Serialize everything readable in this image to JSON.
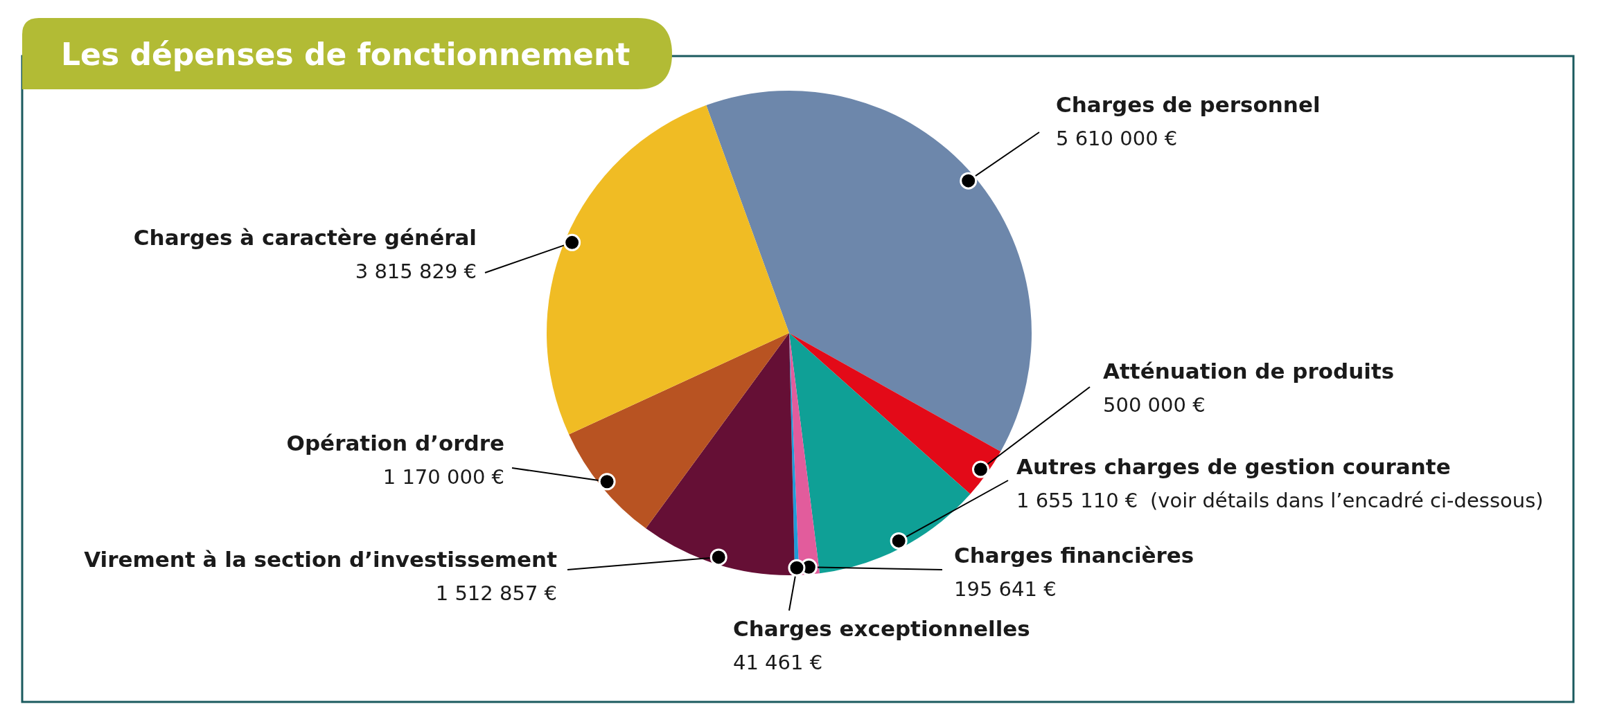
{
  "chart_data": {
    "type": "pie",
    "title": "Les dépenses de fonctionnement",
    "categories": [
      "Charges de personnel",
      "Atténuation de produits",
      "Autres charges de gestion courante",
      "Charges financières",
      "Charges exceptionnelles",
      "Virement à la section d’investissement",
      "Opération d’ordre",
      "Charges à caractère général"
    ],
    "values": [
      5610000,
      500000,
      1655110,
      195641,
      41461,
      1512857,
      1170000,
      3815829
    ],
    "value_labels": [
      "5 610 000 €",
      "500 000 €",
      "1 655 110 €",
      "195 641 €",
      "41 461 €",
      "1 512 857 €",
      "1 170 000 €",
      "3 815 829 €"
    ],
    "colors": [
      "#6d87ab",
      "#e30a18",
      "#0fa096",
      "#e25c9c",
      "#1f9cd8",
      "#650f35",
      "#b85322",
      "#f0bc24"
    ],
    "annotations": [
      "(voir détails dans l’encadré ci-dessous)"
    ]
  }
}
